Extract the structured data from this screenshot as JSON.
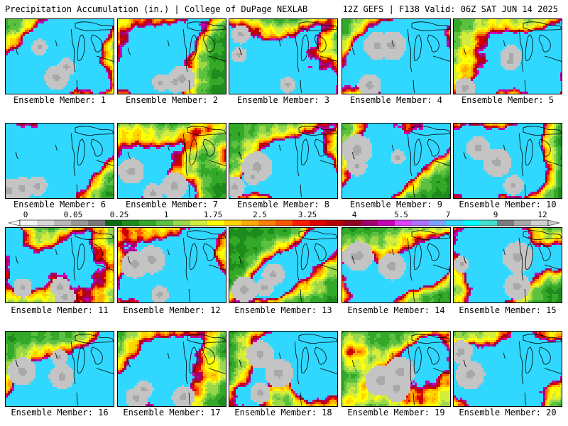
{
  "header": {
    "title_left": "Precipitation Accumulation (in.) | College of DuPage NEXLAB",
    "title_right": "12Z GEFS | F138 Valid: 06Z SAT JUN 14 2025"
  },
  "legend": {
    "tick_labels": [
      "0",
      "0.05",
      "0.25",
      "1",
      "1.75",
      "2.5",
      "3.25",
      "4",
      "5.5",
      "7",
      "9",
      "12"
    ],
    "colors": [
      "#f4f4f4",
      "#d8d8d8",
      "#b8b8b8",
      "#989898",
      "#787878",
      "#0a6a12",
      "#1e8c1c",
      "#34a828",
      "#5cc040",
      "#9ad84a",
      "#d4ec3c",
      "#ffff00",
      "#ffd400",
      "#ffaa00",
      "#ff7f00",
      "#ff5500",
      "#ff1a00",
      "#e00000",
      "#b80000",
      "#900020",
      "#a0006a",
      "#c800b4",
      "#e040ff",
      "#b070ff",
      "#7aa0ff",
      "#30d8ff",
      "#00ffff",
      "#40e0d0",
      "#7c7c7c",
      "#a8a8a8",
      "#d0d0d0"
    ]
  },
  "panels": [
    {
      "label": "Ensemble Member: 1"
    },
    {
      "label": "Ensemble Member: 2"
    },
    {
      "label": "Ensemble Member: 3"
    },
    {
      "label": "Ensemble Member: 4"
    },
    {
      "label": "Ensemble Member: 5"
    },
    {
      "label": "Ensemble Member: 6"
    },
    {
      "label": "Ensemble Member: 7"
    },
    {
      "label": "Ensemble Member: 8"
    },
    {
      "label": "Ensemble Member: 9"
    },
    {
      "label": "Ensemble Member: 10"
    },
    {
      "label": "Ensemble Member: 11"
    },
    {
      "label": "Ensemble Member: 12"
    },
    {
      "label": "Ensemble Member: 13"
    },
    {
      "label": "Ensemble Member: 14"
    },
    {
      "label": "Ensemble Member: 15"
    },
    {
      "label": "Ensemble Member: 16"
    },
    {
      "label": "Ensemble Member: 17"
    },
    {
      "label": "Ensemble Member: 18"
    },
    {
      "label": "Ensemble Member: 19"
    },
    {
      "label": "Ensemble Member: 20"
    }
  ]
}
